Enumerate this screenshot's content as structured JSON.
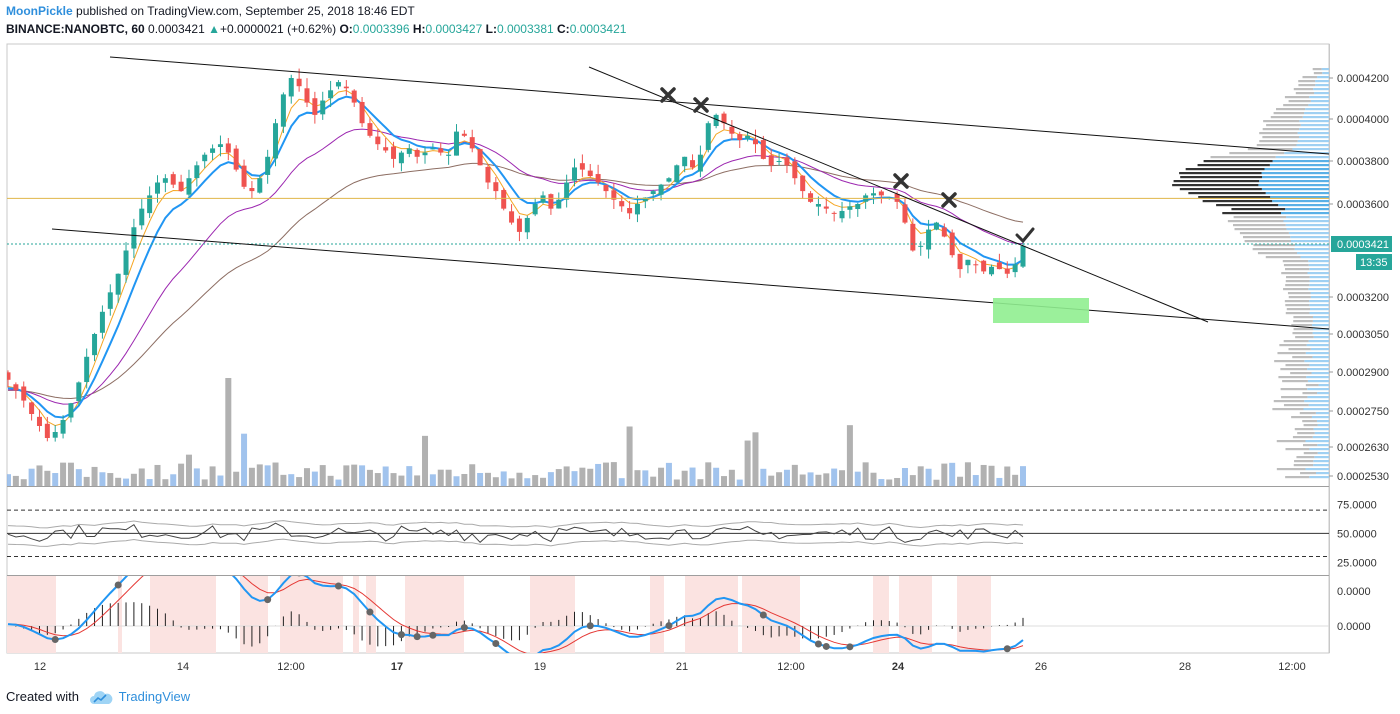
{
  "header": {
    "author": "MoonPickle",
    "published": "published on TradingView.com, September 25, 2018 18:46 EDT",
    "symbol": "BINANCE:NANOBTC, 60",
    "last": "0.0003421",
    "change": "+0.0000021 (+0.62%)",
    "o_label": "O:",
    "o": "0.0003396",
    "h_label": "H:",
    "h": "0.0003427",
    "l_label": "L:",
    "l": "0.0003381",
    "c_label": "C:",
    "c": "0.0003421"
  },
  "footer": {
    "created_with": "Created with",
    "brand": "TradingView"
  },
  "colors": {
    "up": "#26a69a",
    "down": "#ef5350",
    "ema_fast": "#2196f3",
    "ema_mid": "#f5a623",
    "ema_slow": "#9c27b0",
    "sma": "#8d6e63",
    "level": "#e0b64a",
    "zone": "#90ee90"
  },
  "chart_data": [
    {
      "type": "candlestick",
      "title": "BINANCE:NANOBTC, 60",
      "y_ticks": [
        "0.0004200",
        "0.0004000",
        "0.0003800",
        "0.0003600",
        "0.0003200",
        "0.0003050",
        "0.0002900",
        "0.0002750",
        "0.0002630",
        "0.0002530"
      ],
      "last_price_label": "0.0003421",
      "countdown_label": "13:35",
      "x_ticks": [
        "12",
        "14",
        "12:00",
        "17",
        "19",
        "21",
        "12:00",
        "24",
        "26",
        "28",
        "12:00"
      ],
      "closes": [
        0.000287,
        0.000283,
        0.000279,
        0.000274,
        0.00027,
        0.000266,
        0.000268,
        0.000272,
        0.000278,
        0.000286,
        0.000296,
        0.000305,
        0.000314,
        0.000322,
        0.00033,
        0.00034,
        0.00035,
        0.000358,
        0.000364,
        0.00037,
        0.000372,
        0.000369,
        0.000366,
        0.000372,
        0.000378,
        0.000383,
        0.000386,
        0.000388,
        0.000384,
        0.000376,
        0.000368,
        0.000366,
        0.000372,
        0.000382,
        0.000398,
        0.000412,
        0.00042,
        0.000416,
        0.000408,
        0.000402,
        0.000409,
        0.000414,
        0.000418,
        0.000415,
        0.000408,
        0.000398,
        0.000392,
        0.000388,
        0.000385,
        0.000381,
        0.000384,
        0.000386,
        0.000382,
        0.000384,
        0.000386,
        0.000384,
        0.000383,
        0.000394,
        0.000392,
        0.000386,
        0.000378,
        0.00037,
        0.000366,
        0.000358,
        0.000352,
        0.000348,
        0.000354,
        0.00036,
        0.000364,
        0.000358,
        0.000362,
        0.00037,
        0.000377,
        0.000376,
        0.000373,
        0.00037,
        0.000366,
        0.000362,
        0.000359,
        0.000356,
        0.00036,
        0.000363,
        0.000366,
        0.000369,
        0.000372,
        0.000378,
        0.000382,
        0.000377,
        0.000383,
        0.000398,
        0.000402,
        0.000398,
        0.000393,
        0.00039,
        0.000392,
        0.000388,
        0.000381,
        0.000378,
        0.00038,
        0.000378,
        0.000372,
        0.000366,
        0.000361,
        0.00036,
        0.000358,
        0.000356,
        0.000357,
        0.000359,
        0.00036,
        0.000364,
        0.000365,
        0.000364,
        0.000363,
        0.000361,
        0.000352,
        0.00034,
        0.000342,
        0.000349,
        0.000352,
        0.000346,
        0.000338,
        0.000332,
        0.000336,
        0.000334,
        0.000331,
        0.000333,
        0.000332,
        0.00033,
        0.000334,
        0.000342
      ],
      "volume_bars_count": 130,
      "lines": [
        {
          "name": "upper trend line"
        },
        {
          "name": "lower trend line"
        },
        {
          "name": "descending resistance"
        },
        {
          "name": "horizontal level",
          "y": 0.0003626
        }
      ],
      "markers": [
        "x",
        "x",
        "x",
        "x",
        "check"
      ],
      "zone": {
        "y_from": 0.0003155,
        "y_to": 0.0003185
      }
    },
    {
      "type": "line",
      "title": "",
      "y_ticks": [
        "75.0000",
        "50.0000",
        "25.0000"
      ],
      "ylim": [
        14,
        90
      ],
      "levels": [
        70,
        50,
        30
      ]
    },
    {
      "type": "line",
      "title": "",
      "y_ticks": [
        "0.0000",
        "0.0000"
      ]
    }
  ]
}
